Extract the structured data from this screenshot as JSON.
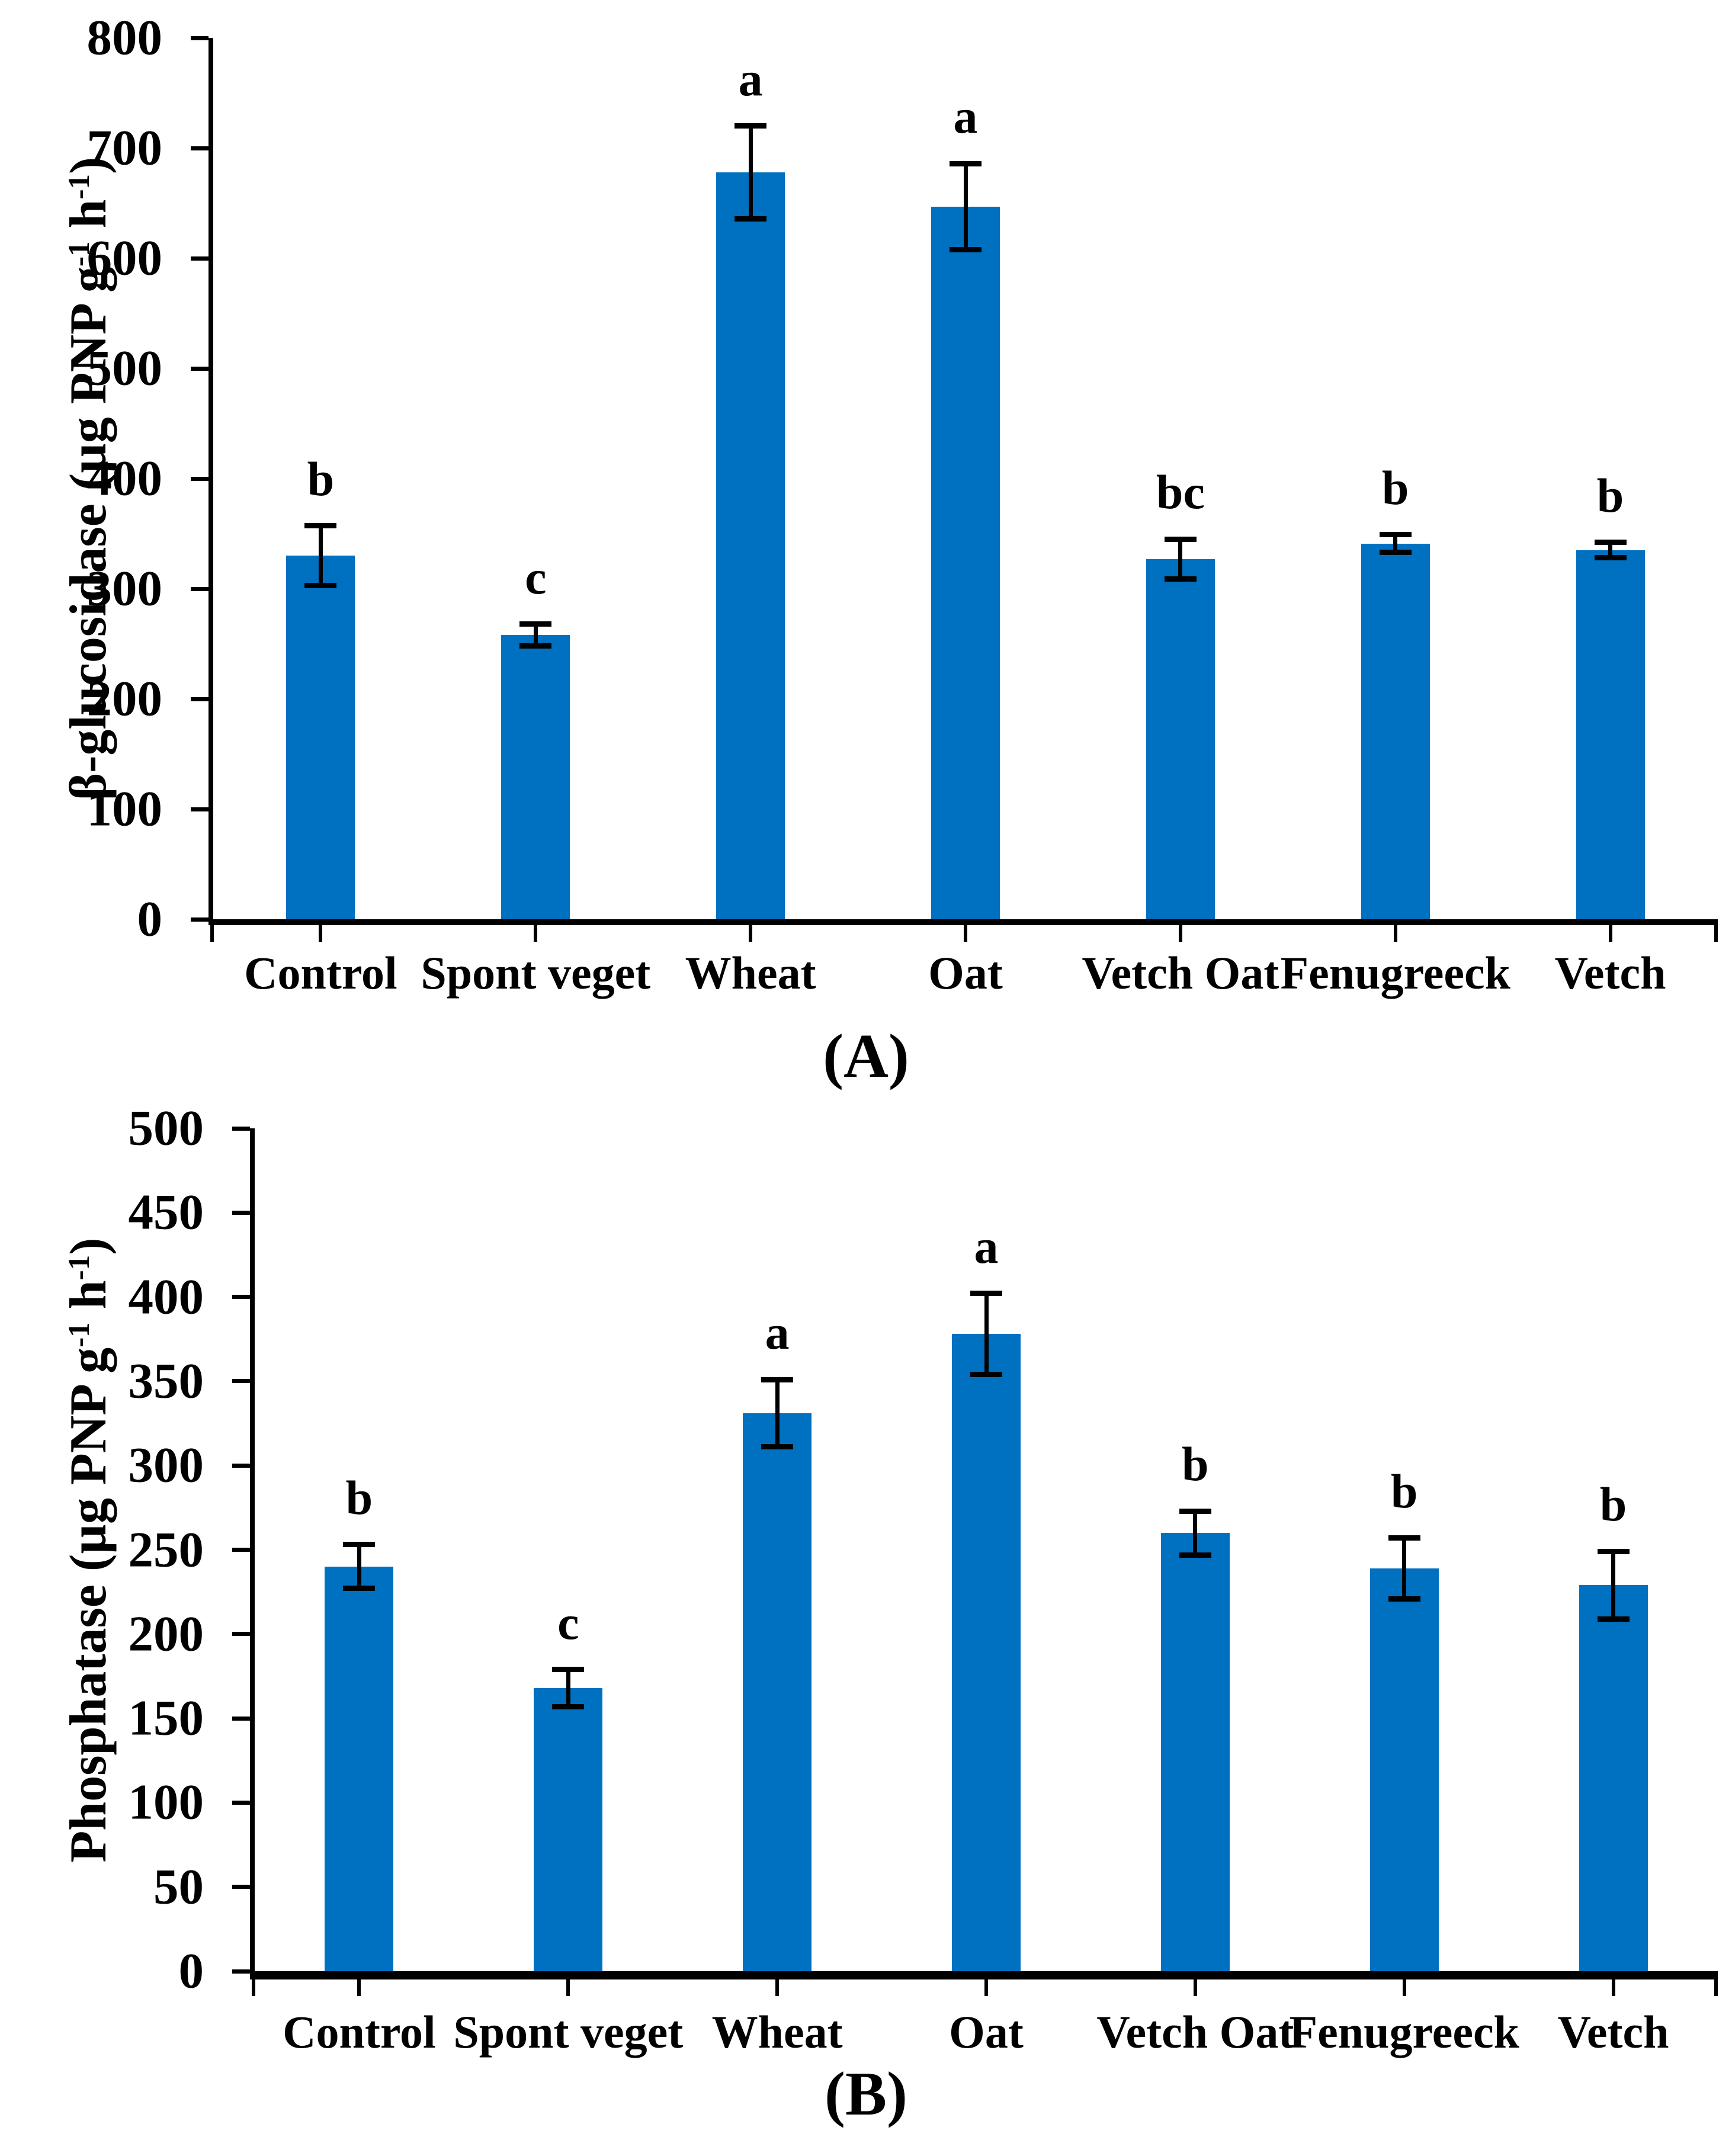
{
  "figure_background": "#FFFFFF",
  "colors": {
    "bar_fill": "#0070C0",
    "axis": "#000000",
    "text": "#000000"
  },
  "chart_data": [
    {
      "type": "bar",
      "panel_label": "(A)",
      "ylabel": "β-glucosidase (µg PNP g-1 h-1)",
      "ylabel_segments": [
        {
          "text": "β-glucosidase (µg PNP g",
          "sup": false
        },
        {
          "text": "-1",
          "sup": true
        },
        {
          "text": " h",
          "sup": false
        },
        {
          "text": "-1",
          "sup": true
        },
        {
          "text": ")",
          "sup": false
        }
      ],
      "categories": [
        "Control",
        "Spont veget",
        "Wheat",
        "Oat",
        "Vetch Oat",
        "Fenugreeck",
        "Vetch"
      ],
      "values": [
        330,
        258,
        678,
        647,
        327,
        341,
        335
      ],
      "errors": [
        27,
        10,
        42,
        39,
        18,
        8,
        7
      ],
      "sig_letters": [
        "b",
        "c",
        "a",
        "a",
        "bc",
        "b",
        "b"
      ],
      "ylim": [
        0,
        800
      ],
      "ytick_step": 100,
      "ytick_labels": [
        "0",
        "100",
        "200",
        "300",
        "400",
        "500",
        "600",
        "700",
        "800"
      ],
      "xlabel": "",
      "legend": "none",
      "grid": false,
      "bar_color": "#0070C0"
    },
    {
      "type": "bar",
      "panel_label": "(B)",
      "ylabel": "Phosphatase (µg PNP g-1 h-1)",
      "ylabel_segments": [
        {
          "text": "Phosphatase (µg PNP g",
          "sup": false
        },
        {
          "text": "-1",
          "sup": true
        },
        {
          "text": " h",
          "sup": false
        },
        {
          "text": "-1",
          "sup": true
        },
        {
          "text": ")",
          "sup": false
        }
      ],
      "categories": [
        "Control",
        "Spont veget",
        "Wheat",
        "Oat",
        "Vetch Oat",
        "Fenugreeck",
        "Vetch"
      ],
      "values": [
        240,
        168,
        331,
        378,
        260,
        239,
        229
      ],
      "errors": [
        13,
        11,
        20,
        24,
        13,
        18,
        20
      ],
      "sig_letters": [
        "b",
        "c",
        "a",
        "a",
        "b",
        "b",
        "b"
      ],
      "ylim": [
        0,
        500
      ],
      "ytick_step": 50,
      "ytick_labels": [
        "0",
        "50",
        "100",
        "150",
        "200",
        "250",
        "300",
        "350",
        "400",
        "450",
        "500"
      ],
      "xlabel": "",
      "legend": "none",
      "grid": false,
      "bar_color": "#0070C0"
    }
  ]
}
